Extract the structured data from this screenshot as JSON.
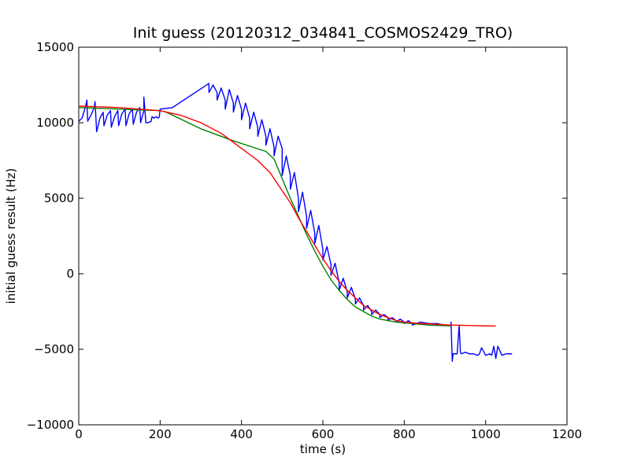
{
  "chart_data": {
    "type": "line",
    "title": "Init guess (20120312_034841_COSMOS2429_TRO)",
    "xlabel": "time (s)",
    "ylabel": "initial guess result (Hz)",
    "xlim": [
      0,
      1200
    ],
    "ylim": [
      -10000,
      15000
    ],
    "xticks": [
      0,
      200,
      400,
      600,
      800,
      1000,
      1200
    ],
    "xtick_labels": [
      "0",
      "200",
      "400",
      "600",
      "800",
      "1000",
      "1200"
    ],
    "yticks": [
      -10000,
      -5000,
      0,
      5000,
      10000,
      15000
    ],
    "ytick_labels": [
      "−10000",
      "−5000",
      "0",
      "5000",
      "10000",
      "15000"
    ],
    "grid": false,
    "legend": "none",
    "series": [
      {
        "color": "#0000ff",
        "x": [
          0,
          8,
          16,
          20,
          22,
          30,
          38,
          40,
          44,
          52,
          60,
          62,
          70,
          78,
          80,
          88,
          96,
          98,
          106,
          114,
          116,
          124,
          132,
          134,
          142,
          150,
          152,
          160,
          160,
          165,
          170,
          178,
          180,
          185,
          190,
          195,
          198,
          200,
          230,
          320,
          320,
          330,
          340,
          340,
          350,
          360,
          360,
          370,
          380,
          380,
          390,
          400,
          400,
          410,
          420,
          420,
          430,
          440,
          440,
          450,
          460,
          460,
          470,
          480,
          480,
          490,
          500,
          500,
          510,
          520,
          520,
          530,
          540,
          540,
          550,
          560,
          560,
          570,
          580,
          580,
          590,
          600,
          600,
          610,
          620,
          620,
          630,
          640,
          640,
          650,
          660,
          660,
          670,
          680,
          680,
          690,
          700,
          700,
          710,
          720,
          720,
          730,
          740,
          740,
          750,
          760,
          760,
          770,
          780,
          780,
          790,
          800,
          800,
          810,
          820,
          820,
          840,
          860,
          880,
          900,
          915,
          915,
          918,
          920,
          930,
          935,
          938,
          940,
          950,
          960,
          970,
          980,
          985,
          990,
          1000,
          1010,
          1015,
          1020,
          1025,
          1030,
          1040,
          1050,
          1065
        ],
        "y": [
          10100,
          10300,
          11000,
          11500,
          10100,
          10500,
          11000,
          11400,
          9400,
          10300,
          10700,
          9800,
          10500,
          10800,
          9700,
          10400,
          10800,
          9800,
          10600,
          10900,
          9800,
          10600,
          10900,
          9900,
          10700,
          11000,
          10000,
          10800,
          11700,
          10000,
          10000,
          10100,
          10400,
          10300,
          10400,
          10300,
          10400,
          10900,
          11000,
          12600,
          12000,
          12500,
          12000,
          11500,
          12300,
          11500,
          10900,
          12200,
          11300,
          10700,
          11800,
          10900,
          10200,
          11300,
          10300,
          9600,
          10700,
          9700,
          9100,
          10200,
          9100,
          8500,
          9600,
          8400,
          7800,
          9100,
          8300,
          6500,
          7800,
          6500,
          5600,
          6700,
          5000,
          4100,
          5400,
          3800,
          3000,
          4200,
          2700,
          2000,
          3200,
          1600,
          900,
          1800,
          600,
          -100,
          700,
          -600,
          -1100,
          -300,
          -1200,
          -1600,
          -900,
          -1700,
          -2000,
          -1600,
          -2100,
          -2400,
          -2100,
          -2500,
          -2700,
          -2400,
          -2700,
          -2900,
          -2700,
          -2900,
          -3100,
          -2900,
          -3100,
          -3200,
          -3000,
          -3200,
          -3300,
          -3100,
          -3300,
          -3400,
          -3200,
          -3300,
          -3300,
          -3400,
          -3400,
          -3200,
          -5800,
          -5300,
          -5300,
          -3400,
          -5200,
          -5300,
          -5200,
          -5300,
          -5300,
          -5400,
          -5300,
          -4900,
          -5400,
          -5300,
          -5400,
          -4800,
          -5600,
          -4800,
          -5400,
          -5300,
          -5300
        ]
      },
      {
        "color": "#008000",
        "x": [
          0,
          100,
          200,
          215,
          300,
          380,
          460,
          480,
          500,
          520,
          540,
          560,
          580,
          600,
          620,
          640,
          660,
          680,
          700,
          720,
          740,
          760,
          780,
          800,
          820,
          840,
          860,
          880,
          900,
          915
        ],
        "y": [
          11000,
          10900,
          10800,
          10700,
          9600,
          8800,
          8100,
          7600,
          6300,
          5000,
          3800,
          2600,
          1500,
          500,
          -400,
          -1100,
          -1700,
          -2200,
          -2500,
          -2800,
          -3000,
          -3100,
          -3200,
          -3250,
          -3300,
          -3350,
          -3400,
          -3420,
          -3440,
          -3450
        ]
      },
      {
        "color": "#ff0000",
        "x": [
          0,
          100,
          200,
          250,
          300,
          350,
          400,
          440,
          470,
          500,
          520,
          540,
          560,
          580,
          600,
          620,
          640,
          660,
          680,
          700,
          720,
          740,
          760,
          780,
          800,
          840,
          880,
          920,
          960,
          1000,
          1025
        ],
        "y": [
          11100,
          11000,
          10800,
          10500,
          10000,
          9300,
          8300,
          7500,
          6700,
          5500,
          4700,
          3700,
          2800,
          1900,
          1000,
          200,
          -500,
          -1100,
          -1600,
          -2100,
          -2400,
          -2700,
          -2900,
          -3100,
          -3200,
          -3300,
          -3350,
          -3400,
          -3430,
          -3450,
          -3460
        ]
      }
    ]
  }
}
